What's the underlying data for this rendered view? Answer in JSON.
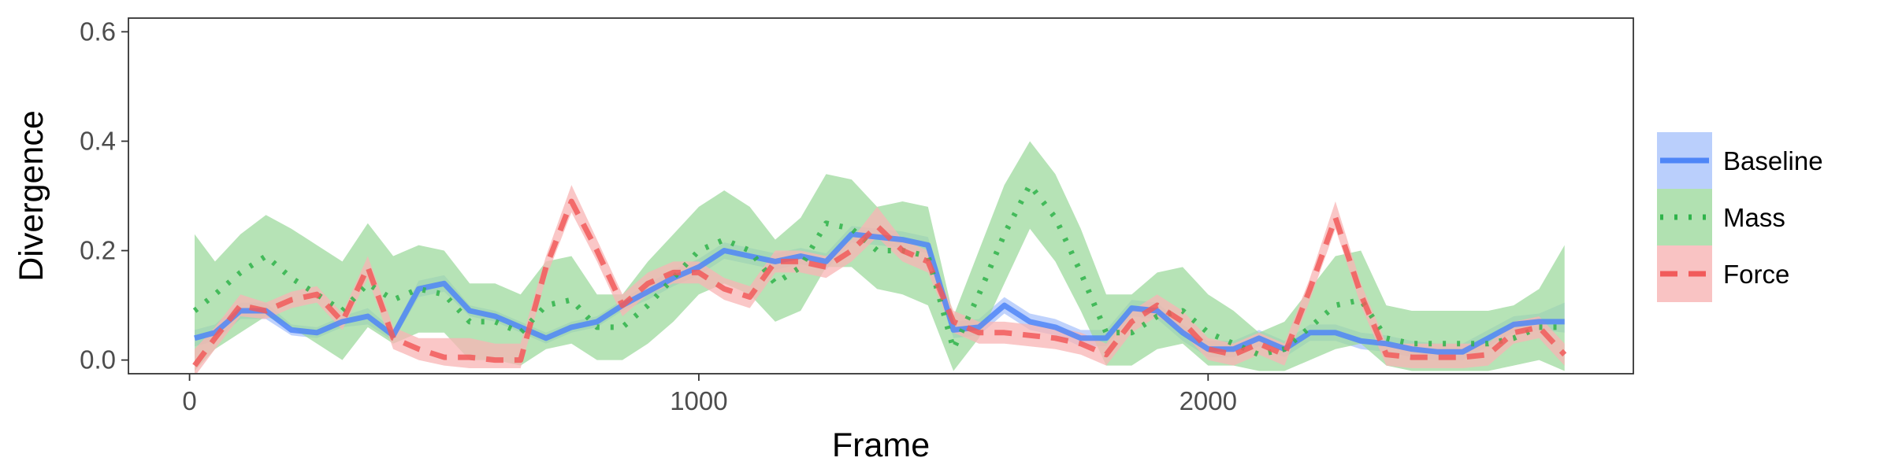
{
  "chart_data": {
    "type": "line",
    "xlabel": "Frame",
    "ylabel": "Divergence",
    "xlim": [
      -120,
      2835
    ],
    "ylim": [
      -0.025,
      0.625
    ],
    "x_ticks": [
      0,
      1000,
      2000
    ],
    "x_tick_labels": [
      "0",
      "1000",
      "2000"
    ],
    "y_ticks": [
      0.0,
      0.2,
      0.4,
      0.6
    ],
    "y_tick_labels": [
      "0.0",
      "0.2",
      "0.4",
      "0.6"
    ],
    "grid": false,
    "legend_position": "right",
    "x": [
      10,
      50,
      100,
      150,
      200,
      250,
      300,
      350,
      400,
      450,
      500,
      550,
      600,
      650,
      700,
      750,
      800,
      850,
      900,
      950,
      1000,
      1050,
      1100,
      1150,
      1200,
      1250,
      1300,
      1350,
      1400,
      1450,
      1500,
      1550,
      1600,
      1650,
      1700,
      1750,
      1800,
      1850,
      1900,
      1950,
      2000,
      2050,
      2100,
      2150,
      2200,
      2250,
      2300,
      2350,
      2400,
      2450,
      2500,
      2550,
      2600,
      2650,
      2700
    ],
    "series": [
      {
        "name": "Baseline",
        "color": "#4f86f7",
        "fill": "#a9c3fb",
        "dash": "solid",
        "values": [
          0.04,
          0.05,
          0.09,
          0.09,
          0.055,
          0.05,
          0.07,
          0.08,
          0.045,
          0.13,
          0.14,
          0.09,
          0.08,
          0.06,
          0.04,
          0.06,
          0.07,
          0.1,
          0.125,
          0.15,
          0.17,
          0.2,
          0.19,
          0.18,
          0.19,
          0.18,
          0.23,
          0.225,
          0.22,
          0.21,
          0.055,
          0.06,
          0.1,
          0.07,
          0.06,
          0.04,
          0.04,
          0.095,
          0.09,
          0.05,
          0.02,
          0.02,
          0.04,
          0.02,
          0.05,
          0.05,
          0.035,
          0.03,
          0.02,
          0.015,
          0.015,
          0.04,
          0.065,
          0.07,
          0.07
        ],
        "lower": [
          0.025,
          0.035,
          0.075,
          0.075,
          0.045,
          0.04,
          0.06,
          0.065,
          0.035,
          0.115,
          0.125,
          0.08,
          0.07,
          0.05,
          0.03,
          0.05,
          0.06,
          0.09,
          0.11,
          0.135,
          0.155,
          0.185,
          0.175,
          0.165,
          0.175,
          0.165,
          0.215,
          0.21,
          0.205,
          0.195,
          0.04,
          0.045,
          0.085,
          0.055,
          0.045,
          0.025,
          0.025,
          0.08,
          0.075,
          0.035,
          0.005,
          0.005,
          0.025,
          0.005,
          0.035,
          0.035,
          0.02,
          0.015,
          0.005,
          0.0,
          0.0,
          0.025,
          0.05,
          0.055,
          0.05
        ],
        "upper": [
          0.055,
          0.065,
          0.105,
          0.105,
          0.065,
          0.06,
          0.08,
          0.095,
          0.055,
          0.145,
          0.155,
          0.1,
          0.09,
          0.07,
          0.05,
          0.07,
          0.08,
          0.11,
          0.14,
          0.165,
          0.185,
          0.215,
          0.205,
          0.195,
          0.205,
          0.195,
          0.245,
          0.24,
          0.235,
          0.225,
          0.07,
          0.075,
          0.115,
          0.085,
          0.075,
          0.055,
          0.055,
          0.11,
          0.105,
          0.065,
          0.035,
          0.035,
          0.055,
          0.035,
          0.065,
          0.065,
          0.05,
          0.045,
          0.035,
          0.03,
          0.03,
          0.055,
          0.08,
          0.085,
          0.105
        ]
      },
      {
        "name": "Mass",
        "color": "#2fb34a",
        "fill": "#9dd99d",
        "dash": "dotted",
        "values": [
          0.09,
          0.12,
          0.16,
          0.19,
          0.15,
          0.12,
          0.09,
          0.14,
          0.11,
          0.13,
          0.12,
          0.07,
          0.07,
          0.05,
          0.1,
          0.11,
          0.06,
          0.06,
          0.1,
          0.15,
          0.2,
          0.22,
          0.2,
          0.14,
          0.17,
          0.25,
          0.24,
          0.2,
          0.2,
          0.19,
          0.02,
          0.12,
          0.23,
          0.32,
          0.26,
          0.16,
          0.05,
          0.05,
          0.08,
          0.09,
          0.05,
          0.03,
          0.01,
          0.02,
          0.06,
          0.1,
          0.11,
          0.04,
          0.03,
          0.03,
          0.03,
          0.03,
          0.04,
          0.06,
          0.06
        ],
        "lower": [
          -0.02,
          0.02,
          0.05,
          0.08,
          0.06,
          0.03,
          0.0,
          0.06,
          0.03,
          0.05,
          0.05,
          0.0,
          0.0,
          -0.01,
          0.02,
          0.03,
          0.0,
          0.0,
          0.03,
          0.07,
          0.12,
          0.14,
          0.12,
          0.07,
          0.09,
          0.17,
          0.17,
          0.13,
          0.12,
          0.1,
          -0.02,
          0.04,
          0.14,
          0.24,
          0.18,
          0.09,
          -0.01,
          -0.01,
          0.02,
          0.03,
          -0.01,
          -0.01,
          -0.02,
          -0.02,
          0.0,
          0.02,
          0.03,
          -0.01,
          -0.02,
          -0.02,
          -0.02,
          -0.02,
          -0.01,
          0.0,
          -0.02
        ],
        "upper": [
          0.23,
          0.18,
          0.23,
          0.265,
          0.24,
          0.21,
          0.18,
          0.25,
          0.19,
          0.21,
          0.2,
          0.14,
          0.14,
          0.12,
          0.18,
          0.19,
          0.12,
          0.12,
          0.18,
          0.23,
          0.28,
          0.31,
          0.28,
          0.22,
          0.26,
          0.34,
          0.33,
          0.28,
          0.29,
          0.28,
          0.08,
          0.2,
          0.32,
          0.4,
          0.34,
          0.24,
          0.12,
          0.12,
          0.16,
          0.17,
          0.12,
          0.09,
          0.05,
          0.07,
          0.13,
          0.19,
          0.2,
          0.1,
          0.09,
          0.09,
          0.09,
          0.09,
          0.1,
          0.13,
          0.21
        ]
      },
      {
        "name": "Force",
        "color": "#f15b5b",
        "fill": "#f8b4b4",
        "dash": "dashed",
        "values": [
          -0.01,
          0.04,
          0.1,
          0.09,
          0.11,
          0.12,
          0.07,
          0.17,
          0.04,
          0.02,
          0.005,
          0.005,
          0.0,
          0.0,
          0.17,
          0.29,
          0.2,
          0.1,
          0.14,
          0.16,
          0.16,
          0.13,
          0.115,
          0.18,
          0.18,
          0.17,
          0.2,
          0.245,
          0.2,
          0.18,
          0.07,
          0.05,
          0.05,
          0.045,
          0.04,
          0.03,
          0.01,
          0.07,
          0.1,
          0.07,
          0.02,
          0.01,
          0.03,
          0.01,
          0.13,
          0.26,
          0.12,
          0.01,
          0.005,
          0.005,
          0.005,
          0.01,
          0.05,
          0.06,
          0.01
        ],
        "lower": [
          -0.03,
          0.02,
          0.08,
          0.075,
          0.095,
          0.105,
          0.055,
          0.15,
          0.02,
          0.0,
          -0.01,
          -0.015,
          -0.015,
          -0.015,
          0.15,
          0.27,
          0.18,
          0.08,
          0.12,
          0.14,
          0.14,
          0.11,
          0.095,
          0.16,
          0.16,
          0.15,
          0.18,
          0.225,
          0.18,
          0.16,
          0.05,
          0.03,
          0.03,
          0.025,
          0.02,
          0.01,
          -0.01,
          0.05,
          0.08,
          0.05,
          0.0,
          -0.01,
          0.01,
          -0.01,
          0.11,
          0.24,
          0.1,
          -0.01,
          -0.015,
          -0.015,
          -0.015,
          -0.01,
          0.03,
          0.04,
          -0.01
        ],
        "upper": [
          0.02,
          0.06,
          0.12,
          0.105,
          0.125,
          0.135,
          0.085,
          0.19,
          0.06,
          0.04,
          0.04,
          0.04,
          0.03,
          0.03,
          0.19,
          0.32,
          0.22,
          0.12,
          0.16,
          0.18,
          0.18,
          0.15,
          0.135,
          0.2,
          0.2,
          0.19,
          0.22,
          0.28,
          0.22,
          0.2,
          0.09,
          0.07,
          0.07,
          0.065,
          0.06,
          0.05,
          0.03,
          0.09,
          0.12,
          0.09,
          0.04,
          0.03,
          0.05,
          0.03,
          0.15,
          0.29,
          0.14,
          0.03,
          0.03,
          0.03,
          0.03,
          0.03,
          0.07,
          0.08,
          0.03
        ]
      }
    ]
  }
}
